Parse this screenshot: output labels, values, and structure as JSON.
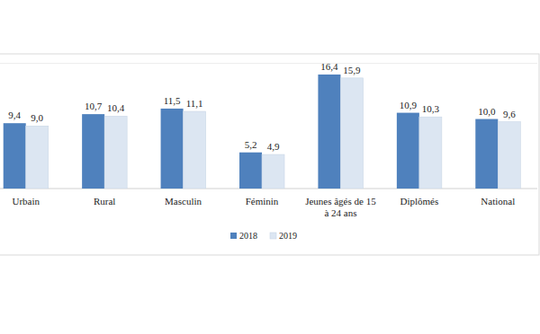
{
  "chart_data": {
    "type": "bar",
    "categories": [
      "Urbain",
      "Rural",
      "Masculin",
      "Féminin",
      "Jeunes âgés de 15 à 24 ans",
      "Diplômés",
      "National"
    ],
    "series": [
      {
        "name": "2018",
        "color": "#4f81bd",
        "values": [
          9.4,
          10.7,
          11.5,
          5.2,
          16.4,
          10.9,
          10.0
        ],
        "value_labels": [
          "9,4",
          "10,7",
          "11,5",
          "5,2",
          "16,4",
          "10,9",
          "10,0"
        ]
      },
      {
        "name": "2019",
        "color": "#dce6f2",
        "values": [
          9.0,
          10.4,
          11.1,
          4.9,
          15.9,
          10.3,
          9.6
        ],
        "value_labels": [
          "9,0",
          "10,4",
          "11,1",
          "4,9",
          "15,9",
          "10,3",
          "9,6"
        ]
      }
    ],
    "ylim": [
      0,
      18
    ],
    "yticks": [
      0,
      18
    ],
    "legend": "bottom",
    "data_labels": true,
    "tick_labels": "x"
  }
}
